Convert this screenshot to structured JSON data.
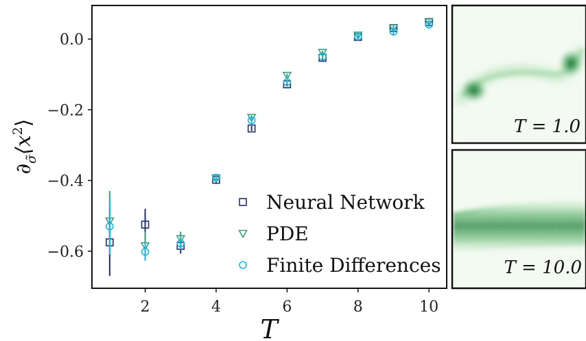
{
  "chart_data": [
    {
      "type": "scatter",
      "title": "",
      "xlabel": "T",
      "ylabel_parts": {
        "base": "∂",
        "sub": "σ̃",
        "mid": "⟨x",
        "sup": "2",
        "end": "⟩"
      },
      "xlim": [
        0.5,
        10.5
      ],
      "ylim": [
        -0.705,
        0.095
      ],
      "x_ticks": [
        2,
        4,
        6,
        8,
        10
      ],
      "x_tick_labels": [
        "2",
        "4",
        "6",
        "8",
        "10"
      ],
      "y_ticks": [
        0.0,
        -0.2,
        -0.4,
        -0.6
      ],
      "y_tick_labels": [
        "0.0",
        "−0.2",
        "−0.4",
        "−0.6"
      ],
      "grid": false,
      "legend_position": "lower-right",
      "series": [
        {
          "name": "Neural Network",
          "marker": "square",
          "color": "#1f2f6b",
          "x": [
            1,
            2,
            3,
            4,
            5,
            6,
            7,
            8,
            9,
            10
          ],
          "y": [
            -0.575,
            -0.525,
            -0.585,
            -0.398,
            -0.253,
            -0.128,
            -0.053,
            0.006,
            0.031,
            0.048
          ],
          "err": [
            0.095,
            0.045,
            0.022,
            0.012,
            0.007,
            0.006,
            0.005,
            0.006,
            0.006,
            0.005
          ]
        },
        {
          "name": "PDE",
          "marker": "triangle-down",
          "color": "#3aa07a",
          "x": [
            1,
            2,
            3,
            4,
            5,
            6,
            7,
            8,
            9,
            10
          ],
          "y": [
            -0.515,
            -0.585,
            -0.565,
            -0.393,
            -0.222,
            -0.103,
            -0.038,
            0.011,
            0.031,
            0.048
          ],
          "err": [
            0.085,
            0.04,
            0.02,
            0.01,
            0.006,
            0.005,
            0.005,
            0.005,
            0.005,
            0.004
          ]
        },
        {
          "name": "Finite Differences",
          "marker": "circle",
          "color": "#1cb5e0",
          "x": [
            1,
            2,
            3,
            4,
            5,
            6,
            7,
            8,
            9,
            10
          ],
          "y": [
            -0.53,
            -0.602,
            -0.578,
            -0.392,
            -0.23,
            -0.122,
            -0.05,
            0.007,
            0.021,
            0.041
          ],
          "err": [
            0.08,
            0.025,
            0.018,
            0.01,
            0.008,
            0.006,
            0.006,
            0.007,
            0.011,
            0.007
          ]
        }
      ]
    },
    {
      "type": "heatmap",
      "label": "T = 1.0",
      "colormap": "greens"
    },
    {
      "type": "heatmap",
      "label": "T = 10.0",
      "colormap": "greens"
    }
  ]
}
